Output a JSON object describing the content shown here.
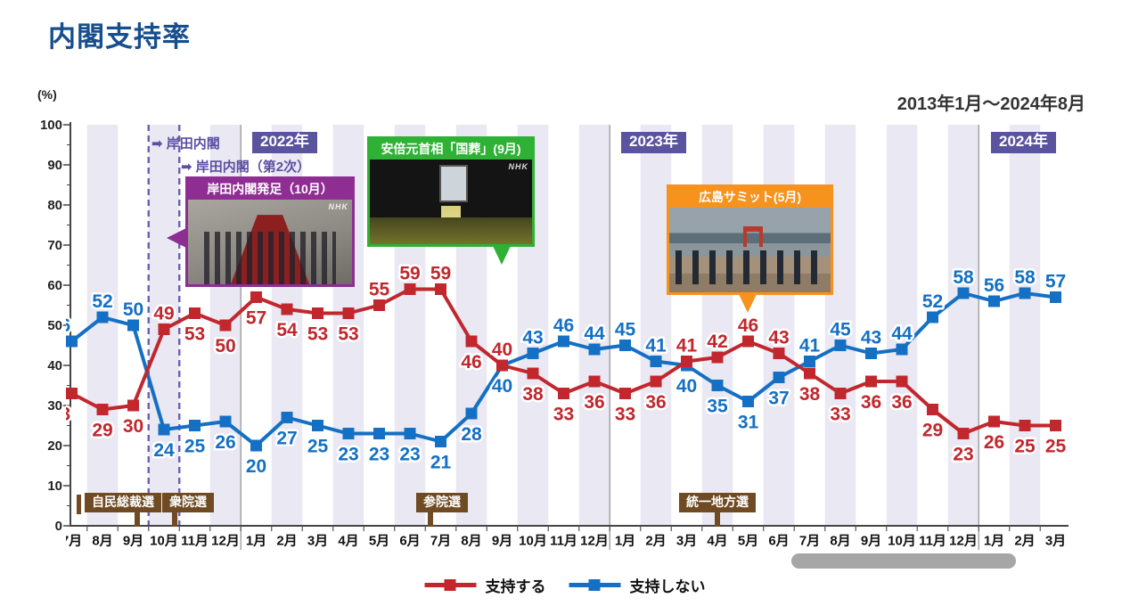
{
  "title": "内閣支持率",
  "date_range": "2013年1月～2024年8月",
  "y_axis_unit": "(%)",
  "legend": {
    "approve": "支持する",
    "disapprove": "支持しない"
  },
  "colors": {
    "approve": "#c1272d",
    "disapprove": "#1470c4",
    "stripe": "#e9e8f3",
    "dashed_line": "#6b5fb0",
    "year_badge_bg": "#5a549e",
    "kishida_purple": "#8e2d92",
    "funeral_green": "#2eb135",
    "summit_orange": "#f6921e",
    "event_sign_brown": "#6f4a22",
    "title_blue": "#174e8d"
  },
  "year_badges": [
    "2022年",
    "2023年",
    "2024年"
  ],
  "annotations": {
    "kishida1": "➡ 岸田内閣",
    "kishida2": "➡ 岸田内閣（第2次）",
    "kishida_photo_title": "岸田内閣発足（10月）",
    "funeral_photo_title": "安倍元首相「国葬」(9月)",
    "summit_photo_title": "広島サミット(5月)",
    "nhk_watermark": "NHK"
  },
  "event_signs": [
    "自民総裁選",
    "衆院選",
    "参院選",
    "統一地方選"
  ],
  "chart_data": {
    "type": "line",
    "title": "内閣支持率",
    "ylabel": "(%)",
    "ylim": [
      0,
      100
    ],
    "y_ticks": [
      0,
      10,
      20,
      30,
      40,
      50,
      60,
      70,
      80,
      90,
      100
    ],
    "grid": false,
    "legend_position": "bottom",
    "x_labels": [
      "7月",
      "8月",
      "9月",
      "10月",
      "11月",
      "12月",
      "1月",
      "2月",
      "3月",
      "4月",
      "5月",
      "6月",
      "7月",
      "8月",
      "9月",
      "10月",
      "11月",
      "12月",
      "1月",
      "2月",
      "3月",
      "4月",
      "5月",
      "6月",
      "7月",
      "8月",
      "9月",
      "10月",
      "11月",
      "12月",
      "1月",
      "2月",
      "3月"
    ],
    "year_boundaries_before": [
      6,
      18,
      30
    ],
    "dashed_boundaries_before": [
      3,
      4
    ],
    "series": [
      {
        "name": "支持しない",
        "color": "#1470c4",
        "values": [
          46,
          52,
          50,
          24,
          25,
          26,
          20,
          27,
          25,
          23,
          23,
          23,
          21,
          28,
          40,
          43,
          46,
          44,
          45,
          41,
          40,
          35,
          31,
          37,
          41,
          45,
          43,
          44,
          52,
          58,
          56,
          58,
          57
        ],
        "label_pos": [
          "above-left",
          "above",
          "above",
          "below",
          "below",
          "below",
          "below",
          "below",
          "below",
          "below",
          "below",
          "below",
          "below",
          "below",
          "below",
          "above",
          "above",
          "above",
          "above",
          "above",
          "below",
          "below",
          "below",
          "below",
          "above",
          "above",
          "above",
          "above",
          "above",
          "above",
          "above",
          "above",
          "above"
        ]
      },
      {
        "name": "支持する",
        "color": "#c1272d",
        "values": [
          33,
          29,
          30,
          49,
          53,
          50,
          57,
          54,
          53,
          53,
          55,
          59,
          59,
          46,
          40,
          38,
          33,
          36,
          33,
          36,
          41,
          42,
          46,
          43,
          38,
          33,
          36,
          36,
          29,
          23,
          26,
          25,
          25
        ],
        "label_pos": [
          "below-left",
          "below",
          "below",
          "above",
          "below",
          "below",
          "below",
          "below",
          "below",
          "below",
          "above",
          "above",
          "above",
          "below",
          "above",
          "below",
          "below",
          "below",
          "below",
          "below",
          "above",
          "above",
          "above",
          "above",
          "below",
          "below",
          "below",
          "below",
          "below",
          "below",
          "below",
          "below",
          "below"
        ]
      }
    ]
  }
}
